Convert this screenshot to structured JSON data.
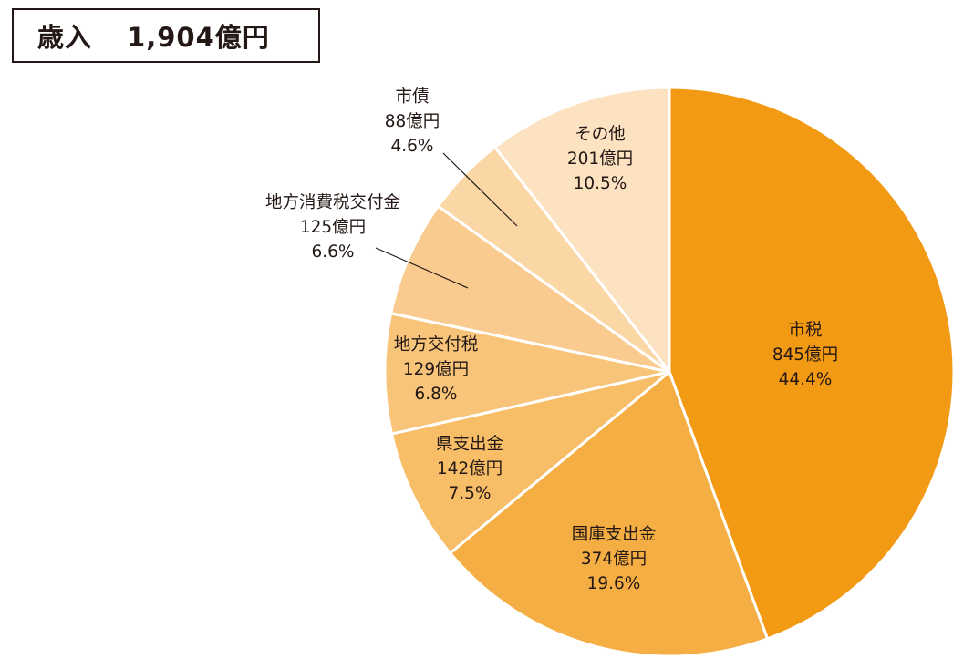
{
  "header": {
    "label": "歳入",
    "total": "1,904億円"
  },
  "chart_data": {
    "type": "pie",
    "title": "歳入 1,904億円",
    "start_angle_deg": 0,
    "direction": "clockwise",
    "slices": [
      {
        "name": "市税",
        "amount": "845億円",
        "percent": 44.4,
        "percent_label": "44.4%",
        "color": "#F39A14",
        "label_inside": true
      },
      {
        "name": "国庫支出金",
        "amount": "374億円",
        "percent": 19.6,
        "percent_label": "19.6%",
        "color": "#F5AE43",
        "label_inside": true
      },
      {
        "name": "県支出金",
        "amount": "142億円",
        "percent": 7.5,
        "percent_label": "7.5%",
        "color": "#F7BD67",
        "label_inside": true
      },
      {
        "name": "地方交付税",
        "amount": "129億円",
        "percent": 6.8,
        "percent_label": "6.8%",
        "color": "#F8C47A",
        "label_inside": true
      },
      {
        "name": "地方消費税交付金",
        "amount": "125億円",
        "percent": 6.6,
        "percent_label": "6.6%",
        "color": "#F9CB8E",
        "label_inside": false
      },
      {
        "name": "市債",
        "amount": "88億円",
        "percent": 4.6,
        "percent_label": "4.6%",
        "color": "#FBD7A6",
        "label_inside": false
      },
      {
        "name": "その他",
        "amount": "201億円",
        "percent": 10.5,
        "percent_label": "10.5%",
        "color": "#FCE2C0",
        "label_inside": true
      }
    ]
  }
}
